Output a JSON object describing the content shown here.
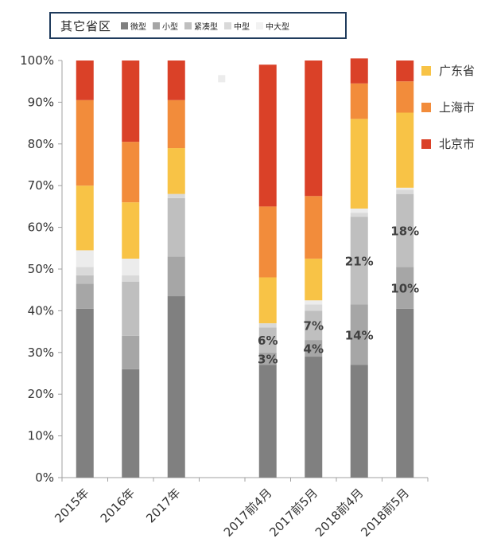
{
  "chart_data": {
    "type": "bar",
    "stacked": true,
    "categories": [
      "2015年",
      "2016年",
      "2017年",
      "",
      "2017前4月",
      "2017前5月",
      "2018前4月",
      "2018前5月"
    ],
    "ylim": [
      0,
      100
    ],
    "y_ticks": [
      "0%",
      "10%",
      "20%",
      "30%",
      "40%",
      "50%",
      "60%",
      "70%",
      "80%",
      "90%",
      "100%"
    ],
    "legend_group_title": "其它省区",
    "series": [
      {
        "name": "微型",
        "color": "#808080",
        "values": [
          40.5,
          26,
          43.5,
          null,
          27,
          29,
          27,
          40.5
        ]
      },
      {
        "name": "小型",
        "color": "#a6a6a6",
        "values": [
          6,
          8,
          9.5,
          null,
          3,
          4,
          14.5,
          10
        ]
      },
      {
        "name": "紧凑型",
        "color": "#bfbfbf",
        "values": [
          2,
          13,
          14,
          null,
          6,
          7,
          21,
          17.5
        ]
      },
      {
        "name": "中型",
        "color": "#d9d9d9",
        "values": [
          2,
          1.5,
          1,
          null,
          1,
          1.5,
          1,
          1
        ]
      },
      {
        "name": "中大型",
        "color": "#ececec",
        "values": [
          4,
          4,
          0,
          null,
          0,
          1,
          1,
          0.5
        ]
      },
      {
        "name": "广东省",
        "color": "#f8c346",
        "values": [
          15.5,
          13.5,
          11,
          null,
          11,
          10,
          21.5,
          18
        ]
      },
      {
        "name": "上海市",
        "color": "#f28c3b",
        "values": [
          20.5,
          14.5,
          11.5,
          null,
          17,
          15,
          8.5,
          7.5
        ]
      },
      {
        "name": "北京市",
        "color": "#da4128",
        "values": [
          9.5,
          19.5,
          9.5,
          null,
          34,
          32.5,
          6,
          5
        ]
      }
    ],
    "data_labels": [
      {
        "category": "2017前4月",
        "series": "紧凑型",
        "text": "6%"
      },
      {
        "category": "2017前4月",
        "series": "小型",
        "text": "3%"
      },
      {
        "category": "2017前5月",
        "series": "紧凑型",
        "text": "7%"
      },
      {
        "category": "2017前5月",
        "series": "小型",
        "text": "4%"
      },
      {
        "category": "2018前4月",
        "series": "紧凑型",
        "text": "21%"
      },
      {
        "category": "2018前4月",
        "series": "小型",
        "text": "14%"
      },
      {
        "category": "2018前5月",
        "series": "紧凑型",
        "text": "18%"
      },
      {
        "category": "2018前5月",
        "series": "小型",
        "text": "10%"
      }
    ]
  }
}
